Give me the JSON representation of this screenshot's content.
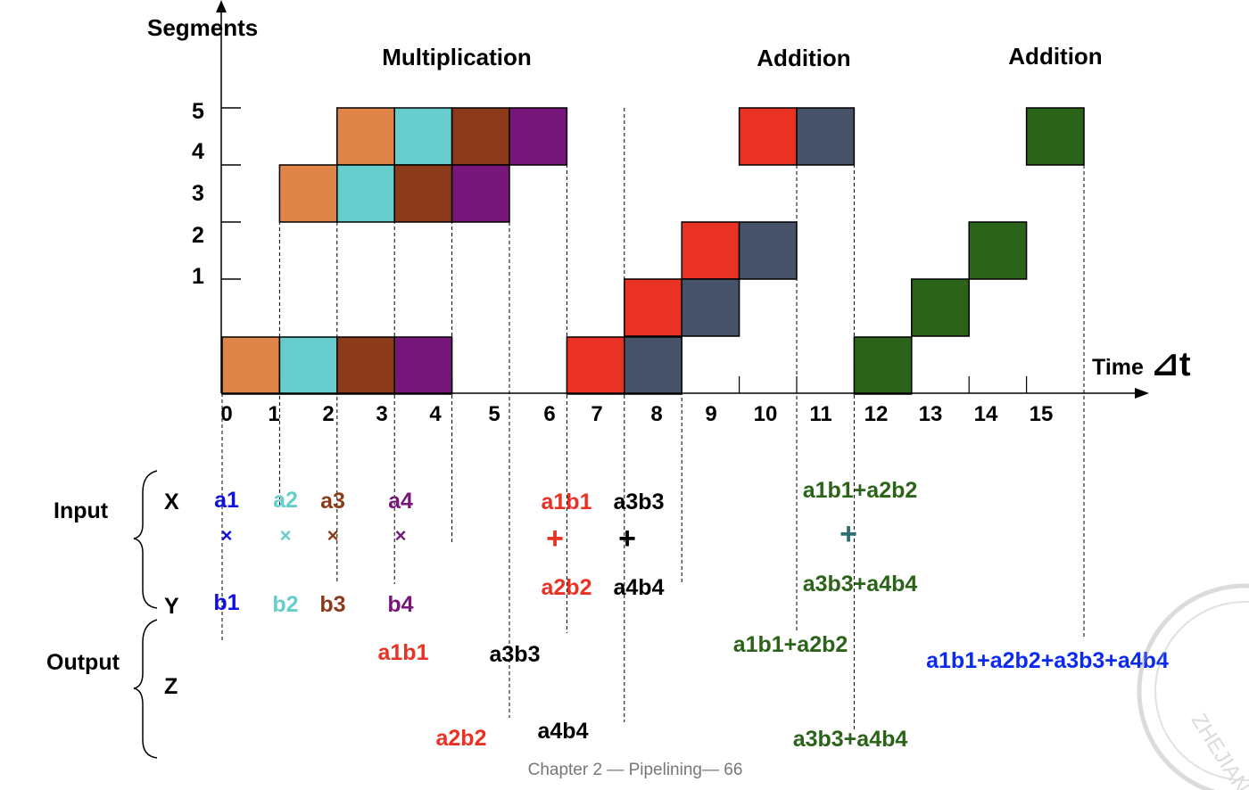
{
  "axes": {
    "y_title": "Segments",
    "x_title": "Time",
    "x_unit": "⊿t",
    "y_ticks": [
      "5",
      "4",
      "3",
      "2",
      "1"
    ],
    "x_ticks": [
      "0",
      "1",
      "2",
      "3",
      "4",
      "5",
      "6",
      "7",
      "8",
      "9",
      "10",
      "11",
      "12",
      "13",
      "14",
      "15"
    ]
  },
  "section_titles": [
    "Multiplication",
    "Addition",
    "Addition"
  ],
  "colors": {
    "orange": "#E0854A",
    "cyan": "#66CCCC",
    "brown": "#8B3A1A",
    "purple": "#77177A",
    "red": "#EA3224",
    "slate": "#465369",
    "green": "#2B6318",
    "blue": "#0A2AF0"
  },
  "blocks": [
    {
      "op": "a1×b1",
      "color": "orange",
      "cells": [
        [
          0,
          1
        ],
        [
          1,
          4
        ],
        [
          2,
          5
        ]
      ]
    },
    {
      "op": "a2×b2",
      "color": "cyan",
      "cells": [
        [
          1,
          1
        ],
        [
          2,
          4
        ],
        [
          3,
          5
        ]
      ]
    },
    {
      "op": "a3×b3",
      "color": "brown",
      "cells": [
        [
          2,
          1
        ],
        [
          3,
          4
        ],
        [
          4,
          5
        ]
      ]
    },
    {
      "op": "a4×b4",
      "color": "purple",
      "cells": [
        [
          3,
          1
        ],
        [
          4,
          4
        ],
        [
          5,
          5
        ]
      ]
    },
    {
      "op": "a1b1+a2b2",
      "color": "red",
      "cells": [
        [
          6,
          1
        ],
        [
          7,
          2
        ],
        [
          8,
          3
        ],
        [
          9,
          5
        ]
      ]
    },
    {
      "op": "a3b3+a4b4",
      "color": "slate",
      "cells": [
        [
          7,
          1
        ],
        [
          8,
          2
        ],
        [
          9,
          3
        ],
        [
          10,
          5
        ]
      ]
    },
    {
      "op": "(a1b1+a2b2)+(a3b3+a4b4)",
      "color": "green",
      "cells": [
        [
          11,
          1
        ],
        [
          12,
          2
        ],
        [
          13,
          3
        ],
        [
          14,
          5
        ]
      ]
    }
  ],
  "io": {
    "input_label": "Input",
    "output_label": "Output",
    "x_label": "X",
    "y_label": "Y",
    "z_label": "Z",
    "inputs": [
      {
        "x": "a1",
        "op": "×",
        "y": "b1",
        "color": "#1010E0"
      },
      {
        "x": "a2",
        "op": "×",
        "y": "b2",
        "color": "#66CCCC"
      },
      {
        "x": "a3",
        "op": "×",
        "y": "b3",
        "color": "#8B3A1A"
      },
      {
        "x": "a4",
        "op": "×",
        "y": "b4",
        "color": "#77177A"
      },
      {
        "x": "a1b1",
        "op": "+",
        "y": "a2b2",
        "color": "#EA3224"
      },
      {
        "x": "a3b3",
        "op": "+",
        "y": "a4b4",
        "color": "#000000"
      },
      {
        "x": "a1b1+a2b2",
        "op": "+",
        "y": "a3b3+a4b4",
        "color": "#2B6318",
        "op_color": "#2E6E6E"
      }
    ],
    "outputs": [
      {
        "text": "a1b1",
        "color": "#EA3224"
      },
      {
        "text": "a2b2",
        "color": "#EA3224"
      },
      {
        "text": "a3b3",
        "color": "#000000"
      },
      {
        "text": "a4b4",
        "color": "#000000"
      },
      {
        "text": "a1b1+a2b2",
        "color": "#2B6318"
      },
      {
        "text": "a3b3+a4b4",
        "color": "#2B6318"
      },
      {
        "text": "a1b1+a2b2+a3b3+a4b4",
        "color": "#0A2AF0"
      }
    ]
  },
  "footer": "Chapter 2 — Pipelining— 66",
  "watermark": "ZHEJIANG"
}
